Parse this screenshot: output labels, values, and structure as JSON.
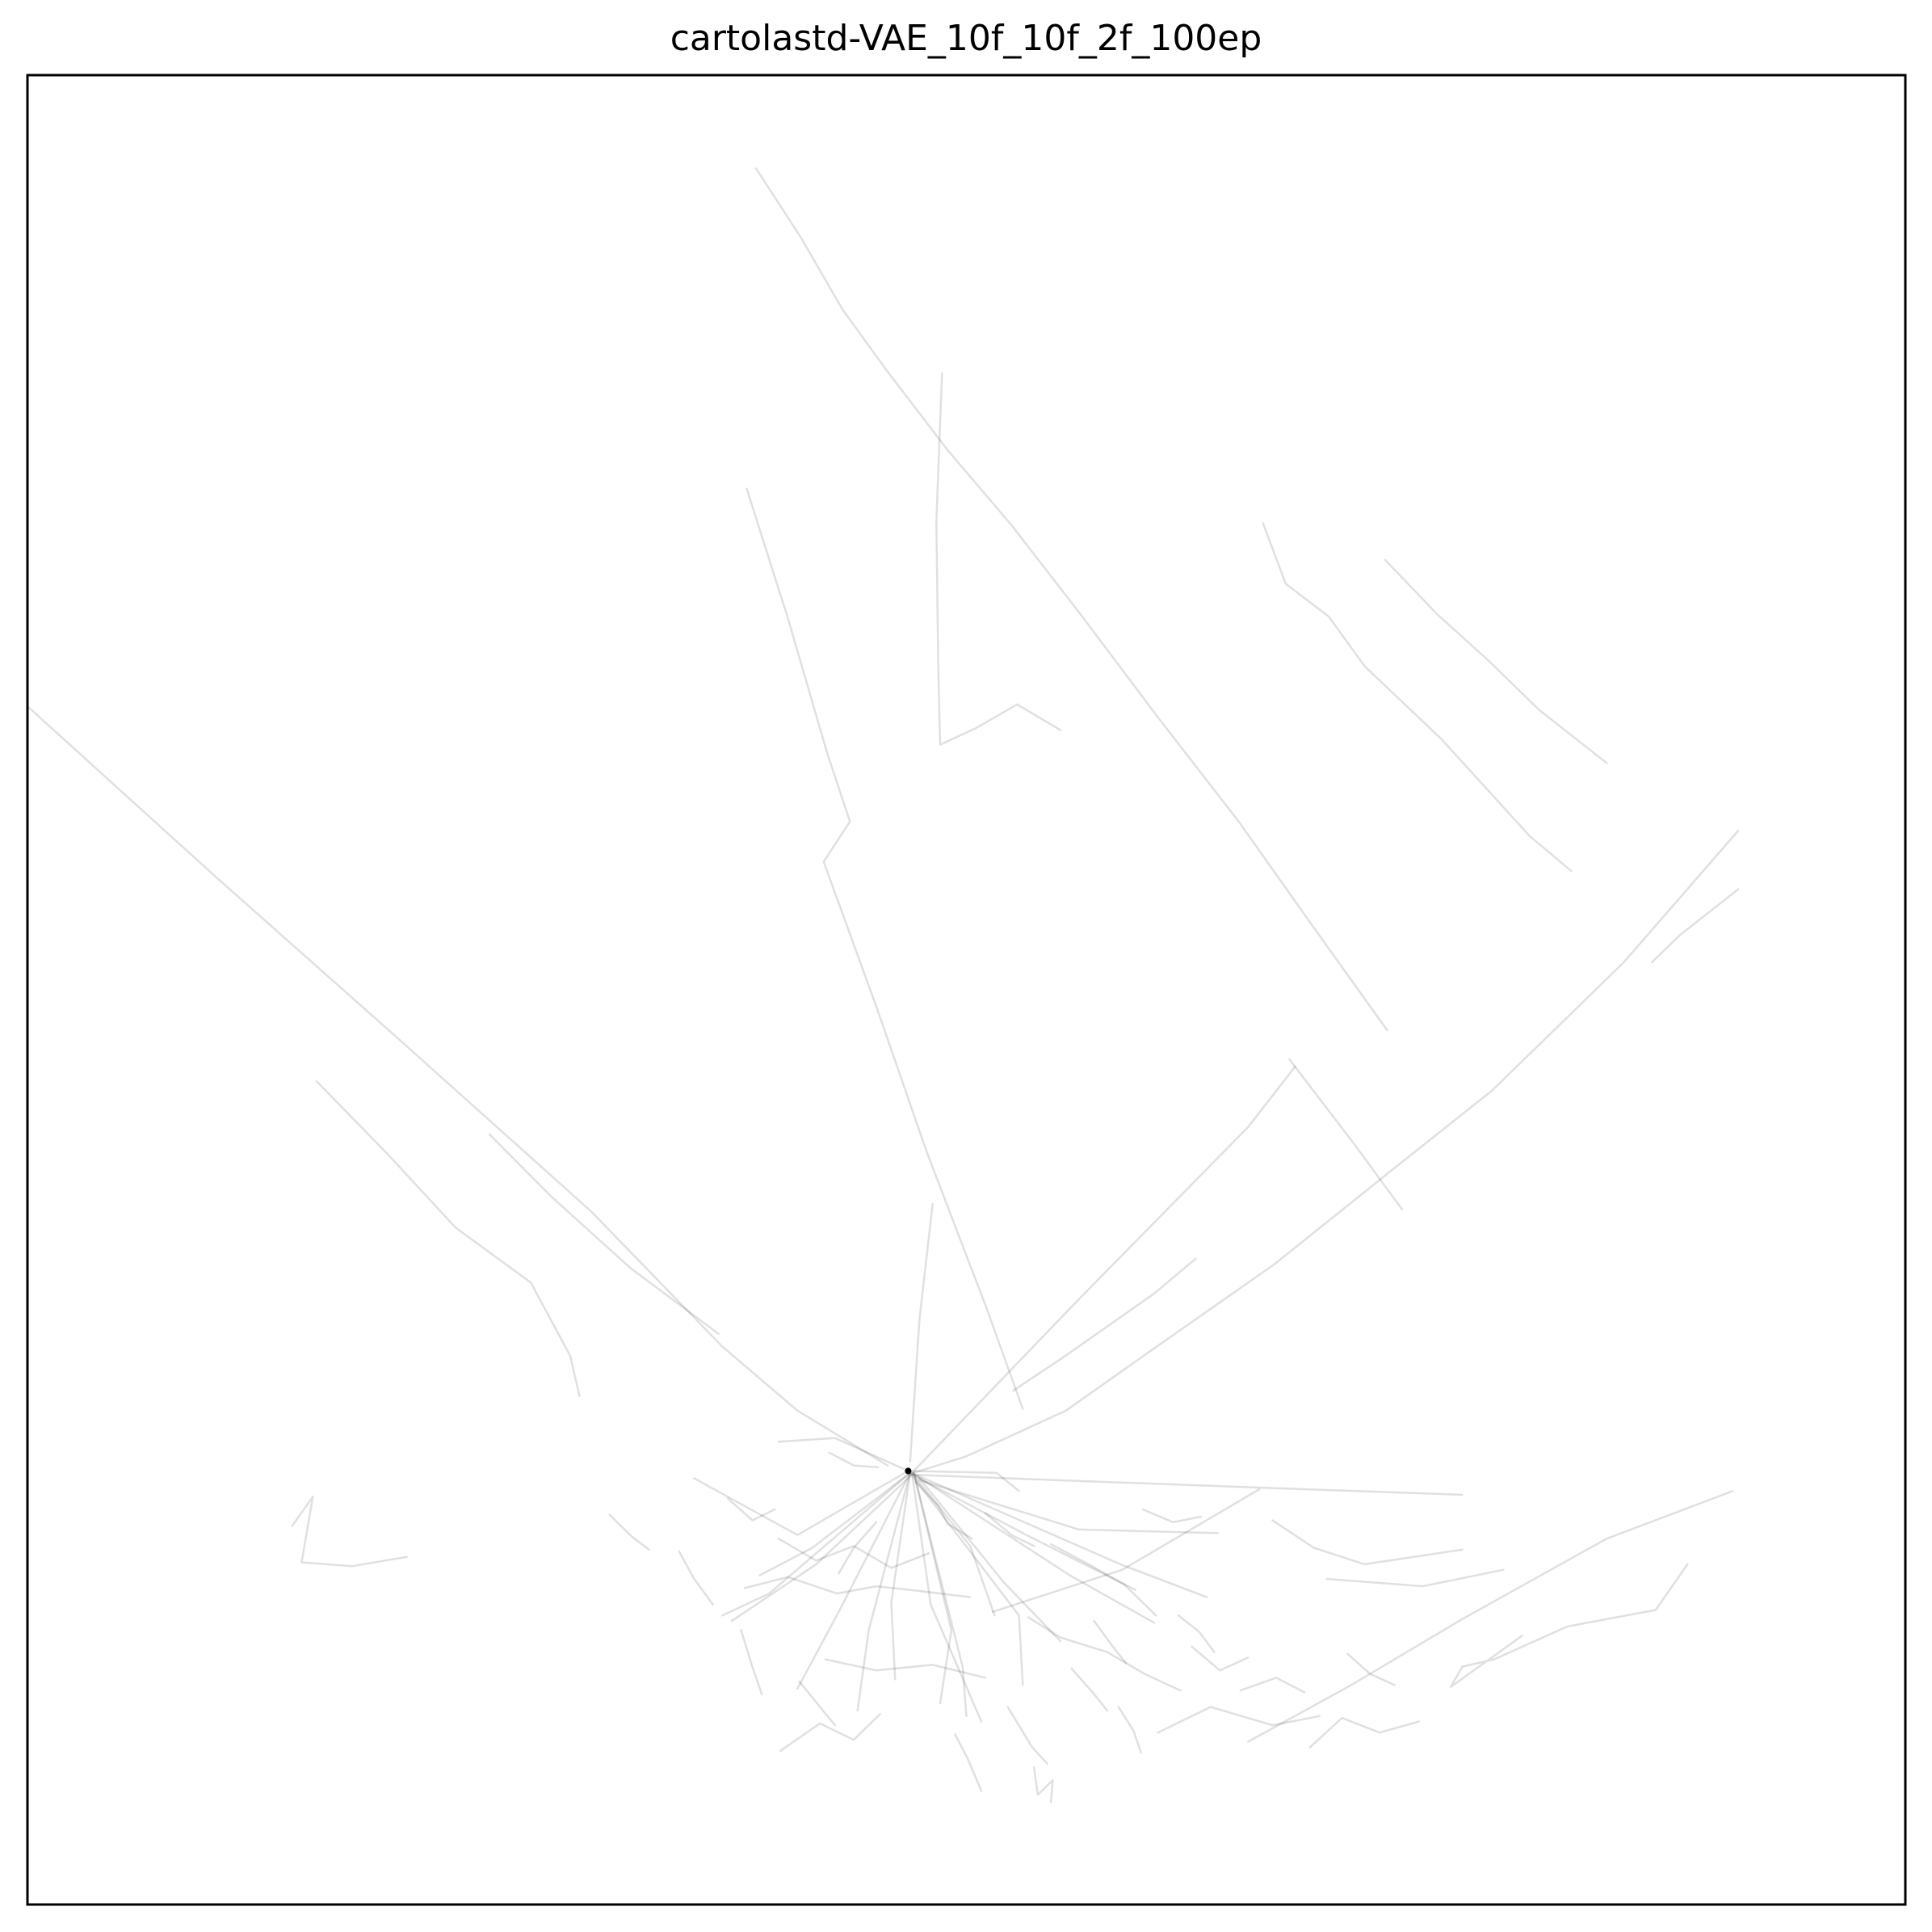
{
  "chart_data": {
    "type": "line",
    "title": "cartolastd-VAE_10f_10f_2f_100ep",
    "xlabel": "",
    "ylabel": "",
    "xticks": [],
    "yticks": [],
    "grid": false,
    "legend": "none",
    "xlim": [
      0,
      100
    ],
    "ylim": [
      0,
      100
    ],
    "line_color": "#000000",
    "line_opacity": 0.12,
    "hub": [
      46.9,
      23.7
    ],
    "series": [
      {
        "values": [
          [
            38.8,
            94.9
          ],
          [
            41.2,
            91.1
          ],
          [
            43.4,
            87.2
          ],
          [
            45.8,
            83.8
          ],
          [
            49.0,
            79.5
          ],
          [
            52.4,
            75.4
          ],
          [
            56.1,
            70.5
          ],
          [
            60.2,
            64.9
          ],
          [
            64.5,
            59.2
          ],
          [
            68.5,
            53.4
          ],
          [
            72.4,
            47.8
          ]
        ]
      },
      {
        "values": [
          [
            38.3,
            77.4
          ],
          [
            40.5,
            70.3
          ],
          [
            42.6,
            62.9
          ],
          [
            43.8,
            59.2
          ],
          [
            42.4,
            57.0
          ],
          [
            45.2,
            49.1
          ],
          [
            47.9,
            41.1
          ],
          [
            51.0,
            32.8
          ],
          [
            53.0,
            27.1
          ]
        ]
      },
      {
        "values": [
          [
            48.7,
            83.7
          ],
          [
            48.4,
            75.6
          ],
          [
            48.5,
            67.8
          ],
          [
            48.6,
            63.4
          ],
          [
            50.5,
            64.3
          ],
          [
            52.7,
            65.6
          ],
          [
            55.0,
            64.2
          ]
        ]
      },
      {
        "values": [
          [
            0.0,
            65.5
          ],
          [
            10.0,
            56.2
          ],
          [
            20.0,
            47.1
          ],
          [
            30.0,
            37.9
          ],
          [
            37.0,
            30.5
          ],
          [
            41.0,
            27.0
          ],
          [
            45.8,
            24.0
          ]
        ]
      },
      {
        "values": [
          [
            15.4,
            45.0
          ],
          [
            19.2,
            41.0
          ],
          [
            22.8,
            37.0
          ],
          [
            26.8,
            34.0
          ],
          [
            28.9,
            30.0
          ],
          [
            29.4,
            27.8
          ]
        ]
      },
      {
        "values": [
          [
            24.6,
            42.1
          ],
          [
            28.0,
            38.6
          ],
          [
            32.1,
            34.8
          ],
          [
            36.8,
            31.2
          ]
        ]
      },
      {
        "values": [
          [
            72.3,
            73.5
          ],
          [
            75.1,
            70.5
          ],
          [
            77.8,
            68.0
          ],
          [
            80.5,
            65.3
          ],
          [
            84.1,
            62.4
          ]
        ]
      },
      {
        "values": [
          [
            91.1,
            58.7
          ],
          [
            85.0,
            51.5
          ],
          [
            78.0,
            44.5
          ],
          [
            72.6,
            40.1
          ],
          [
            66.4,
            35.0
          ],
          [
            60.0,
            30.4
          ],
          [
            55.3,
            27.0
          ],
          [
            50.0,
            24.5
          ],
          [
            47.2,
            23.6
          ]
        ]
      },
      {
        "values": [
          [
            91.1,
            55.5
          ],
          [
            88.0,
            53.0
          ],
          [
            86.5,
            51.5
          ]
        ]
      },
      {
        "values": [
          [
            65.8,
            75.5
          ],
          [
            67.0,
            72.2
          ],
          [
            69.3,
            70.4
          ],
          [
            71.2,
            67.7
          ],
          [
            75.3,
            63.7
          ],
          [
            80.0,
            58.4
          ],
          [
            82.2,
            56.5
          ]
        ]
      },
      {
        "values": [
          [
            47.2,
            23.7
          ],
          [
            56.0,
            33.1
          ],
          [
            65.0,
            42.5
          ],
          [
            67.5,
            45.8
          ]
        ]
      },
      {
        "values": [
          [
            67.2,
            46.2
          ],
          [
            70.7,
            41.5
          ],
          [
            73.2,
            38.0
          ]
        ]
      },
      {
        "values": [
          [
            62.2,
            35.3
          ],
          [
            60.0,
            33.4
          ],
          [
            57.5,
            31.6
          ],
          [
            55.0,
            29.8
          ],
          [
            52.5,
            28.1
          ]
        ]
      },
      {
        "values": [
          [
            47.0,
            23.5
          ],
          [
            65.3,
            22.8
          ],
          [
            76.4,
            22.4
          ]
        ]
      },
      {
        "values": [
          [
            51.4,
            16.0
          ],
          [
            58.3,
            18.3
          ],
          [
            65.6,
            22.7
          ]
        ]
      },
      {
        "values": [
          [
            90.8,
            22.6
          ],
          [
            84.1,
            20.0
          ],
          [
            76.4,
            15.6
          ],
          [
            70.5,
            12.0
          ],
          [
            65.0,
            8.9
          ]
        ]
      },
      {
        "values": [
          [
            88.4,
            18.6
          ],
          [
            86.7,
            16.1
          ],
          [
            82.0,
            15.2
          ],
          [
            78.1,
            13.4
          ],
          [
            76.4,
            13.0
          ],
          [
            75.8,
            11.9
          ],
          [
            79.6,
            14.7
          ]
        ]
      },
      {
        "values": [
          [
            14.1,
            20.7
          ],
          [
            15.2,
            22.3
          ],
          [
            14.6,
            18.7
          ],
          [
            17.3,
            18.5
          ],
          [
            20.2,
            19.0
          ]
        ]
      },
      {
        "values": [
          [
            48.2,
            38.3
          ],
          [
            47.5,
            32.0
          ],
          [
            47.0,
            24.2
          ]
        ]
      },
      {
        "values": [
          [
            47.2,
            23.6
          ],
          [
            49.8,
            13.0
          ],
          [
            50.0,
            10.3
          ]
        ]
      },
      {
        "values": [
          [
            47.3,
            23.4
          ],
          [
            53.2,
            20.2
          ],
          [
            59.0,
            17.2
          ]
        ]
      },
      {
        "values": [
          [
            47.5,
            23.3
          ],
          [
            52.0,
            17.6
          ],
          [
            55.0,
            14.4
          ]
        ]
      },
      {
        "values": [
          [
            47.1,
            23.5
          ],
          [
            42.0,
            18.6
          ],
          [
            37.5,
            15.5
          ]
        ]
      },
      {
        "values": [
          [
            47.0,
            23.6
          ],
          [
            43.2,
            16.0
          ],
          [
            41.0,
            11.8
          ]
        ]
      },
      {
        "values": [
          [
            47.2,
            23.6
          ],
          [
            49.2,
            15.0
          ],
          [
            48.6,
            11.0
          ]
        ]
      },
      {
        "values": [
          [
            46.9,
            23.7
          ],
          [
            41.0,
            20.2
          ],
          [
            35.5,
            23.3
          ]
        ]
      },
      {
        "values": [
          [
            46.9,
            23.7
          ],
          [
            43.0,
            25.5
          ],
          [
            40.0,
            25.3
          ]
        ]
      },
      {
        "values": [
          [
            46.9,
            23.7
          ],
          [
            51.6,
            23.6
          ],
          [
            52.8,
            22.6
          ]
        ]
      },
      {
        "values": [
          [
            47.5,
            23.2
          ],
          [
            56.0,
            20.5
          ],
          [
            63.4,
            20.3
          ]
        ]
      },
      {
        "values": [
          [
            47.0,
            23.6
          ],
          [
            52.8,
            15.8
          ],
          [
            53.0,
            12.0
          ]
        ]
      },
      {
        "values": [
          [
            47.0,
            23.6
          ],
          [
            44.8,
            15.0
          ],
          [
            44.2,
            10.6
          ]
        ]
      },
      {
        "values": [
          [
            47.0,
            23.6
          ],
          [
            39.5,
            17.0
          ],
          [
            37.0,
            15.8
          ]
        ]
      },
      {
        "values": [
          [
            47.1,
            23.6
          ],
          [
            55.5,
            18.0
          ],
          [
            60.0,
            15.4
          ]
        ]
      },
      {
        "values": [
          [
            47.3,
            23.5
          ],
          [
            58.2,
            18.6
          ],
          [
            62.8,
            16.8
          ]
        ]
      },
      {
        "values": [
          [
            47.0,
            23.6
          ],
          [
            46.0,
            16.5
          ],
          [
            46.2,
            12.3
          ]
        ]
      },
      {
        "values": [
          [
            47.0,
            23.6
          ],
          [
            41.8,
            19.5
          ],
          [
            39.0,
            18.0
          ]
        ]
      },
      {
        "values": [
          [
            47.1,
            23.6
          ],
          [
            50.2,
            19.6
          ],
          [
            51.5,
            15.8
          ]
        ]
      },
      {
        "values": [
          [
            47.1,
            23.6
          ],
          [
            48.1,
            16.4
          ],
          [
            50.8,
            10.0
          ]
        ]
      },
      {
        "values": [
          [
            38.2,
            17.3
          ],
          [
            40.5,
            17.9
          ],
          [
            43.1,
            17.0
          ],
          [
            45.2,
            17.4
          ],
          [
            47.0,
            17.2
          ],
          [
            50.2,
            16.8
          ]
        ]
      },
      {
        "values": [
          [
            40.0,
            20.0
          ],
          [
            42.0,
            18.8
          ],
          [
            44.0,
            19.6
          ],
          [
            46.0,
            18.4
          ],
          [
            48.0,
            19.2
          ]
        ]
      },
      {
        "values": [
          [
            42.5,
            13.4
          ],
          [
            45.2,
            12.8
          ],
          [
            48.2,
            13.1
          ],
          [
            51.0,
            12.4
          ]
        ]
      },
      {
        "values": [
          [
            53.3,
            15.7
          ],
          [
            55.0,
            14.6
          ],
          [
            57.5,
            13.8
          ],
          [
            59.5,
            12.6
          ],
          [
            61.4,
            11.7
          ]
        ]
      },
      {
        "values": [
          [
            54.5,
            19.7
          ],
          [
            56.5,
            18.6
          ],
          [
            58.4,
            17.5
          ],
          [
            60.1,
            15.8
          ]
        ]
      },
      {
        "values": [
          [
            66.3,
            21.0
          ],
          [
            68.5,
            19.5
          ],
          [
            71.2,
            18.6
          ],
          [
            76.4,
            19.4
          ]
        ]
      },
      {
        "values": [
          [
            69.2,
            17.8
          ],
          [
            74.3,
            17.4
          ],
          [
            78.6,
            18.3
          ]
        ]
      },
      {
        "values": [
          [
            40.1,
            8.4
          ],
          [
            42.2,
            9.9
          ],
          [
            44.0,
            9.0
          ],
          [
            45.4,
            10.4
          ]
        ]
      },
      {
        "values": [
          [
            52.2,
            10.8
          ],
          [
            53.5,
            8.6
          ],
          [
            54.3,
            7.7
          ]
        ]
      },
      {
        "values": [
          [
            64.6,
            11.7
          ],
          [
            66.5,
            12.4
          ],
          [
            68.0,
            11.6
          ]
        ]
      },
      {
        "values": [
          [
            60.2,
            9.4
          ],
          [
            63.0,
            10.8
          ],
          [
            66.3,
            9.8
          ],
          [
            68.8,
            10.3
          ]
        ]
      },
      {
        "values": [
          [
            68.3,
            8.6
          ],
          [
            70.0,
            10.2
          ],
          [
            72.0,
            9.4
          ],
          [
            74.1,
            10.0
          ]
        ]
      },
      {
        "values": [
          [
            62.0,
            14.1
          ],
          [
            63.5,
            12.8
          ],
          [
            65.0,
            13.5
          ]
        ]
      },
      {
        "values": [
          [
            37.3,
            22.2
          ],
          [
            38.6,
            21.0
          ],
          [
            39.8,
            21.6
          ]
        ]
      },
      {
        "values": [
          [
            31.0,
            21.3
          ],
          [
            32.2,
            20.1
          ],
          [
            33.1,
            19.4
          ]
        ]
      },
      {
        "values": [
          [
            34.7,
            19.3
          ],
          [
            35.5,
            17.8
          ],
          [
            36.5,
            16.4
          ]
        ]
      },
      {
        "values": [
          [
            38.0,
            15.0
          ],
          [
            38.6,
            13.0
          ],
          [
            39.1,
            11.5
          ]
        ]
      },
      {
        "values": [
          [
            41.1,
            12.2
          ],
          [
            42.2,
            10.8
          ],
          [
            43.0,
            9.8
          ]
        ]
      },
      {
        "values": [
          [
            49.4,
            9.3
          ],
          [
            50.1,
            7.9
          ],
          [
            50.8,
            6.2
          ]
        ]
      },
      {
        "values": [
          [
            53.6,
            7.5
          ],
          [
            53.8,
            6.0
          ],
          [
            54.6,
            6.8
          ],
          [
            54.5,
            5.6
          ]
        ]
      },
      {
        "values": [
          [
            58.1,
            10.8
          ],
          [
            58.9,
            9.5
          ],
          [
            59.3,
            8.3
          ]
        ]
      },
      {
        "values": [
          [
            55.6,
            12.9
          ],
          [
            56.8,
            11.5
          ],
          [
            57.5,
            10.6
          ]
        ]
      },
      {
        "values": [
          [
            70.3,
            13.7
          ],
          [
            71.5,
            12.6
          ],
          [
            72.8,
            12.0
          ]
        ]
      },
      {
        "values": [
          [
            47.3,
            23.1
          ],
          [
            48.5,
            21.8
          ],
          [
            49.0,
            20.8
          ],
          [
            50.3,
            20.0
          ]
        ]
      },
      {
        "values": [
          [
            45.2,
            20.9
          ],
          [
            44.0,
            19.5
          ],
          [
            43.2,
            18.1
          ]
        ]
      },
      {
        "values": [
          [
            51.0,
            21.4
          ],
          [
            52.4,
            20.2
          ],
          [
            53.6,
            19.6
          ]
        ]
      },
      {
        "values": [
          [
            56.8,
            15.5
          ],
          [
            57.8,
            14.1
          ],
          [
            58.5,
            13.2
          ]
        ]
      },
      {
        "values": [
          [
            61.3,
            15.8
          ],
          [
            62.4,
            14.9
          ],
          [
            63.2,
            13.8
          ]
        ]
      },
      {
        "values": [
          [
            59.4,
            21.6
          ],
          [
            61.0,
            20.9
          ],
          [
            62.5,
            21.2
          ]
        ]
      },
      {
        "values": [
          [
            42.7,
            24.7
          ],
          [
            44.0,
            24.0
          ],
          [
            45.3,
            23.9
          ]
        ]
      }
    ]
  }
}
